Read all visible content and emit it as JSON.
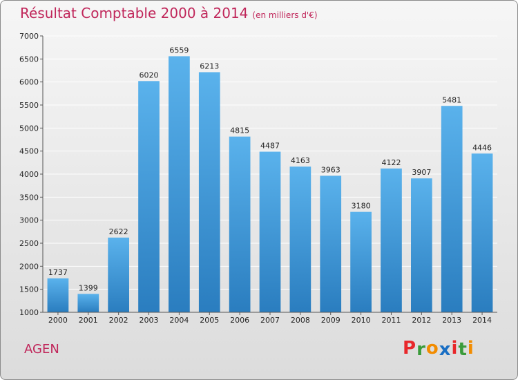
{
  "header": {
    "title": "Résultat Comptable 2000 à 2014",
    "unit": "(en milliers d'€)"
  },
  "footer": {
    "city": "AGEN",
    "logo_letters": [
      "P",
      "r",
      "o",
      "x",
      "i",
      "t",
      "i"
    ]
  },
  "colors": {
    "title": "#c0265a",
    "bar_top": "#5ab2ec",
    "bar_bottom": "#2a7dbf",
    "grid": "#ffffff",
    "logo": [
      "#e8272a",
      "#3a9b3a",
      "#f28c00",
      "#1a6fc4",
      "#e8272a",
      "#3a9b3a",
      "#f28c00"
    ]
  },
  "chart_data": {
    "type": "bar",
    "title": "Résultat Comptable 2000 à 2014",
    "xlabel": "",
    "ylabel": "",
    "ylim": [
      1000,
      7000
    ],
    "yticks": [
      1000,
      1500,
      2000,
      2500,
      3000,
      3500,
      4000,
      4500,
      5000,
      5500,
      6000,
      6500,
      7000
    ],
    "grid": true,
    "categories": [
      "2000",
      "2001",
      "2002",
      "2003",
      "2004",
      "2005",
      "2006",
      "2007",
      "2008",
      "2009",
      "2010",
      "2011",
      "2012",
      "2013",
      "2014"
    ],
    "values": [
      1737,
      1399,
      2622,
      6020,
      6559,
      6213,
      4815,
      4487,
      4163,
      3963,
      3180,
      4122,
      3907,
      5481,
      4446
    ]
  }
}
